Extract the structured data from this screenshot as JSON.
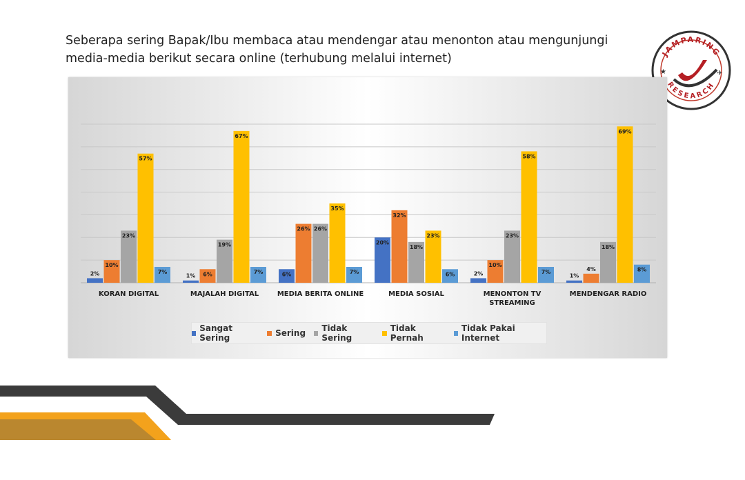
{
  "question": "Seberapa sering Bapak/Ibu membaca atau mendengar atau menonton atau mengunjungi media-media berikut secara online (terhubung melalui internet)",
  "logo": {
    "text_top": "JAMPARING",
    "text_bottom": "RESEARCH"
  },
  "colors": {
    "sangat_sering": "#4472C4",
    "sering": "#ED7D31",
    "tidak_sering": "#A5A5A5",
    "tidak_pernah": "#FFC000",
    "tidak_pakai_internet": "#5B9BD5",
    "stripe_dark": "#3b3b3b",
    "stripe_orange": "#f3a21c",
    "stripe_brown": "#9b7a3a"
  },
  "chart_data": {
    "type": "bar",
    "categories": [
      "KORAN DIGITAL",
      "MAJALAH DIGITAL",
      "MEDIA BERITA ONLINE",
      "MEDIA SOSIAL",
      "MENONTON TV STREAMING",
      "MENDENGAR RADIO"
    ],
    "category_lines": [
      [
        "KORAN DIGITAL"
      ],
      [
        "MAJALAH DIGITAL"
      ],
      [
        "MEDIA BERITA ONLINE"
      ],
      [
        "MEDIA SOSIAL"
      ],
      [
        "MENONTON TV",
        "STREAMING"
      ],
      [
        "MENDENGAR RADIO"
      ]
    ],
    "series": [
      {
        "name": "Sangat Sering",
        "color": "#4472C4",
        "values": [
          2,
          1,
          6,
          20,
          2,
          1
        ]
      },
      {
        "name": "Sering",
        "color": "#ED7D31",
        "values": [
          10,
          6,
          26,
          32,
          10,
          4
        ]
      },
      {
        "name": "Tidak Sering",
        "color": "#A5A5A5",
        "values": [
          23,
          19,
          26,
          18,
          23,
          18
        ]
      },
      {
        "name": "Tidak Pernah",
        "color": "#FFC000",
        "values": [
          57,
          67,
          35,
          23,
          58,
          69
        ]
      },
      {
        "name": "Tidak Pakai Internet",
        "color": "#5B9BD5",
        "values": [
          7,
          7,
          7,
          6,
          7,
          8
        ]
      }
    ],
    "value_suffix": "%",
    "ylim": [
      0,
      70
    ],
    "grid": true,
    "legend_position": "bottom"
  }
}
